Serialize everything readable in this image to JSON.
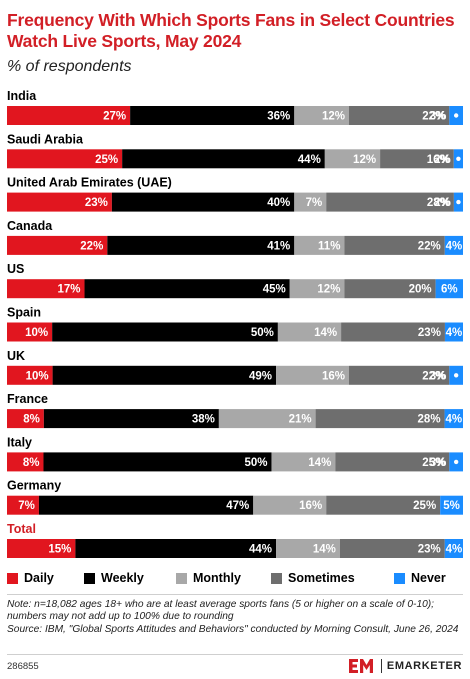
{
  "header": {
    "title": "Frequency With Which Sports Fans in Select Countries Watch Live Sports, May 2024",
    "subtitle": "% of respondents"
  },
  "colors": {
    "Daily": "#e1161f",
    "Weekly": "#000000",
    "Monthly": "#a8a8a8",
    "Sometimes": "#6e6e6e",
    "Never": "#1a8cff",
    "accent": "#d21f26"
  },
  "chart_data": {
    "type": "bar",
    "orientation": "horizontal",
    "stacked": true,
    "categories": [
      "India",
      "Saudi Arabia",
      "United Arab Emirates (UAE)",
      "Canada",
      "US",
      "Spain",
      "UK",
      "France",
      "Italy",
      "Germany",
      "Total"
    ],
    "series": [
      {
        "name": "Daily",
        "values": [
          27,
          25,
          23,
          22,
          17,
          10,
          10,
          8,
          8,
          7,
          15
        ]
      },
      {
        "name": "Weekly",
        "values": [
          36,
          44,
          40,
          41,
          45,
          50,
          49,
          38,
          50,
          47,
          44
        ]
      },
      {
        "name": "Monthly",
        "values": [
          12,
          12,
          7,
          11,
          12,
          14,
          16,
          21,
          14,
          16,
          14
        ]
      },
      {
        "name": "Sometimes",
        "values": [
          22,
          16,
          28,
          22,
          20,
          23,
          22,
          28,
          25,
          25,
          23
        ]
      },
      {
        "name": "Never",
        "values": [
          3,
          2,
          2,
          4,
          6,
          4,
          3,
          4,
          3,
          5,
          4
        ]
      }
    ],
    "legend": [
      "Daily",
      "Weekly",
      "Monthly",
      "Sometimes",
      "Never"
    ],
    "legend_position": "bottom",
    "xlim": [
      0,
      100
    ]
  },
  "footer": {
    "note": "Note: n=18,082 ages 18+ who are at least average sports fans (5 or higher on a scale of 0-10); numbers may not add up to 100% due to rounding",
    "source": "Source: IBM, \"Global Sports Attitudes and Behaviors\" conducted by Morning Consult, June 26, 2024",
    "chart_id": "286855",
    "brand": "EMARKETER"
  }
}
